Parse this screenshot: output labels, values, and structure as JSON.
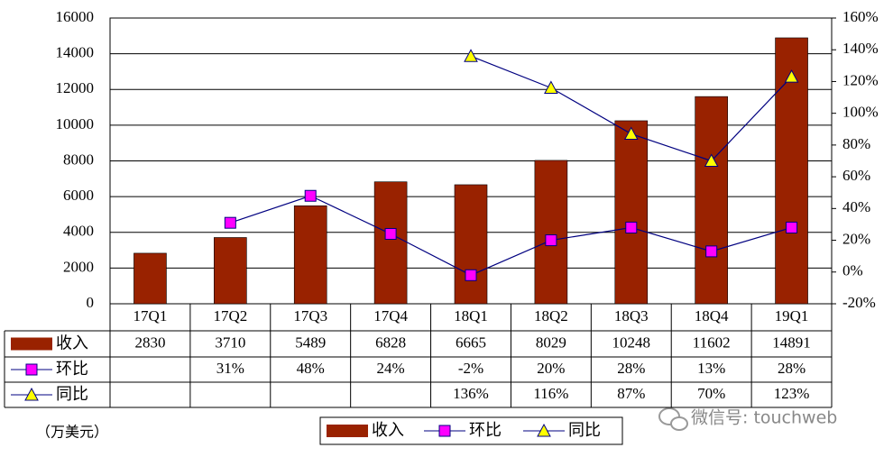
{
  "chart_data": {
    "type": "bar",
    "categories": [
      "17Q1",
      "17Q2",
      "17Q3",
      "17Q4",
      "18Q1",
      "18Q2",
      "18Q3",
      "18Q4",
      "19Q1"
    ],
    "series": [
      {
        "name": "收入",
        "color": "#992200",
        "values": [
          2830,
          3710,
          5489,
          6828,
          6665,
          8029,
          10248,
          11602,
          14891
        ]
      },
      {
        "name": "环比",
        "color": "#ff00ff",
        "axis": "y2",
        "values": [
          null,
          31,
          48,
          24,
          -2,
          20,
          28,
          13,
          28
        ],
        "value_labels": [
          null,
          "31%",
          "48%",
          "24%",
          "-2%",
          "20%",
          "28%",
          "13%",
          "28%"
        ]
      },
      {
        "name": "同比",
        "color": "#ffff00",
        "axis": "y2",
        "values": [
          null,
          null,
          null,
          null,
          136,
          116,
          87,
          70,
          123
        ],
        "value_labels": [
          null,
          null,
          null,
          null,
          "136%",
          "116%",
          "87%",
          "70%",
          "123%"
        ]
      }
    ],
    "ylim": [
      0,
      16000
    ],
    "yticks": [
      0,
      2000,
      4000,
      6000,
      8000,
      10000,
      12000,
      14000,
      16000
    ],
    "y2lim": [
      -20,
      160
    ],
    "y2ticks": [
      {
        "value": -20,
        "label": "-20%"
      },
      {
        "value": 0,
        "label": "0%"
      },
      {
        "value": 20,
        "label": "20%"
      },
      {
        "value": 40,
        "label": "40%"
      },
      {
        "value": 60,
        "label": "60%"
      },
      {
        "value": 80,
        "label": "80%"
      },
      {
        "value": 100,
        "label": "100%"
      },
      {
        "value": 120,
        "label": "120%"
      },
      {
        "value": 140,
        "label": "140%"
      },
      {
        "value": 160,
        "label": "160%"
      }
    ],
    "grid": true,
    "unit_note": "（万美元）",
    "watermark": "微信号: touchweb"
  }
}
